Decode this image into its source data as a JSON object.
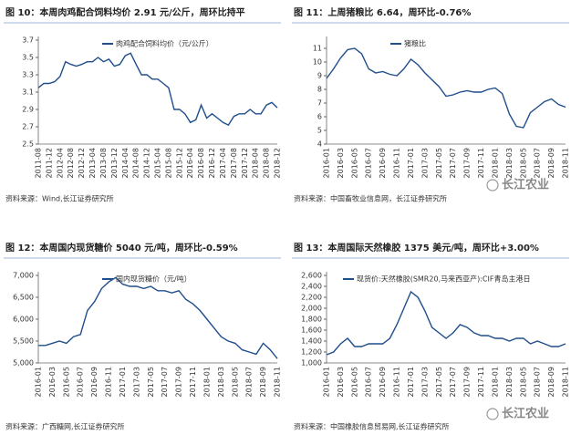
{
  "chart_data": [
    {
      "type": "line",
      "title": "图 10：本周肉鸡配合饲料均价 2.91 元/公斤，周环比持平",
      "source": "资料来源：Wind,长江证券研究所",
      "categories": [
        "2011-08",
        null,
        "2011-12",
        null,
        "2012-04",
        null,
        "2012-08",
        null,
        "2012-12",
        null,
        "2013-04",
        null,
        "2013-08",
        null,
        "2013-12",
        null,
        "2014-04",
        null,
        "2014-08",
        null,
        "2014-12",
        null,
        "2015-04",
        null,
        "2015-08",
        null,
        "2015-12",
        null,
        "2016-04",
        null,
        "2016-08",
        null,
        "2016-12",
        null,
        "2017-04",
        null,
        "2017-08",
        null,
        "2017-12",
        null,
        "2018-04",
        null,
        "2018-08",
        null,
        "2018-12"
      ],
      "series": [
        {
          "name": "肉鸡配合饲料均价（元/公斤）",
          "color": "#1f4e8c",
          "values": [
            3.15,
            3.2,
            3.2,
            3.22,
            3.28,
            3.45,
            3.42,
            3.4,
            3.42,
            3.45,
            3.45,
            3.5,
            3.45,
            3.48,
            3.4,
            3.42,
            3.52,
            3.55,
            3.42,
            3.3,
            3.3,
            3.25,
            3.25,
            3.2,
            3.15,
            2.9,
            2.9,
            2.85,
            2.75,
            2.78,
            2.95,
            2.8,
            2.85,
            2.8,
            2.75,
            2.72,
            2.82,
            2.85,
            2.85,
            2.9,
            2.85,
            2.85,
            2.95,
            2.98,
            2.92
          ]
        }
      ],
      "ylim": [
        2.5,
        3.7
      ],
      "yticks": [
        2.5,
        2.7,
        2.9,
        3.1,
        3.3,
        3.5,
        3.7
      ],
      "grid": false
    },
    {
      "type": "line",
      "title": "图 11：上周猪粮比 6.64，周环比-0.76%",
      "source": "资料来源：中国畜牧业信息网，长江证券研究所",
      "watermark": "长江农业",
      "categories": [
        "2016-01",
        null,
        "2016-03",
        null,
        "2016-05",
        null,
        "2016-07",
        null,
        "2016-09",
        null,
        "2016-11",
        null,
        "2017-01",
        null,
        "2017-03",
        null,
        "2017-05",
        null,
        "2017-07",
        null,
        "2017-09",
        null,
        "2017-11",
        null,
        "2018-01",
        null,
        "2018-03",
        null,
        "2018-05",
        null,
        "2018-07",
        null,
        "2018-09",
        null,
        "2018-11"
      ],
      "series": [
        {
          "name": "猪粮比",
          "color": "#1f4e8c",
          "values": [
            8.8,
            9.5,
            10.3,
            10.9,
            11.0,
            10.6,
            9.5,
            9.2,
            9.3,
            9.1,
            9.0,
            9.5,
            10.2,
            9.8,
            9.2,
            8.7,
            8.2,
            7.5,
            7.6,
            7.8,
            7.9,
            7.8,
            7.8,
            8.0,
            8.1,
            7.7,
            6.2,
            5.3,
            5.2,
            6.3,
            6.7,
            7.1,
            7.3,
            6.9,
            6.7
          ]
        }
      ],
      "ylim": [
        4,
        11.6
      ],
      "yticks": [
        4,
        5,
        6,
        7,
        8,
        9,
        10,
        11
      ],
      "grid": false
    },
    {
      "type": "line",
      "title": "图 12：本周国内现货糖价 5040 元/吨，周环比-0.59%",
      "source": "资料来源：广西糖网,长江证券研究所",
      "categories": [
        "2016-01",
        null,
        "2016-03",
        null,
        "2016-05",
        null,
        "2016-07",
        null,
        "2016-09",
        null,
        "2016-11",
        null,
        "2017-01",
        null,
        "2017-03",
        null,
        "2017-05",
        null,
        "2017-07",
        null,
        "2017-09",
        null,
        "2017-11",
        null,
        "2018-01",
        null,
        "2018-03",
        null,
        "2018-05",
        null,
        "2018-07",
        null,
        "2018-09",
        null,
        "2018-11"
      ],
      "series": [
        {
          "name": "国内现货糖价（元/吨）",
          "color": "#1f4e8c",
          "values": [
            5400,
            5400,
            5450,
            5500,
            5450,
            5600,
            5650,
            6200,
            6400,
            6700,
            6850,
            6950,
            6800,
            6750,
            6750,
            6700,
            6750,
            6650,
            6650,
            6600,
            6650,
            6450,
            6350,
            6200,
            6000,
            5800,
            5600,
            5500,
            5450,
            5300,
            5250,
            5200,
            5450,
            5300,
            5100
          ]
        }
      ],
      "ylim": [
        5000,
        7000
      ],
      "yticks": [
        {
          "value": 5000,
          "label": "5,000"
        },
        {
          "value": 5500,
          "label": "5,500"
        },
        {
          "value": 6000,
          "label": "6,000"
        },
        {
          "value": 6500,
          "label": "6,500"
        },
        {
          "value": 7000,
          "label": "7,000"
        }
      ],
      "grid": false
    },
    {
      "type": "line",
      "title": "图 13：本周国际天然橡胶 1375 美元/吨，周环比+3.00%",
      "source": "资料来源：中国橡胶信息贸易网,长江证券研究所",
      "watermark": "长江农业",
      "categories": [
        "2016-01",
        null,
        "2016-03",
        null,
        "2016-05",
        null,
        "2016-07",
        null,
        "2016-09",
        null,
        "2016-11",
        null,
        "2017-01",
        null,
        "2017-03",
        null,
        "2017-05",
        null,
        "2017-07",
        null,
        "2017-09",
        null,
        "2017-11",
        null,
        "2018-01",
        null,
        "2018-03",
        null,
        "2018-05",
        null,
        "2018-07",
        null,
        "2018-09",
        null,
        "2018-11"
      ],
      "series": [
        {
          "name": "现货价:天然橡胶(SMR20,马来西亚产):CIF青岛主港日",
          "color": "#1f4e8c",
          "values": [
            1150,
            1200,
            1350,
            1450,
            1300,
            1300,
            1350,
            1350,
            1350,
            1450,
            1700,
            2000,
            2300,
            2200,
            1950,
            1650,
            1550,
            1450,
            1550,
            1700,
            1650,
            1550,
            1500,
            1500,
            1450,
            1450,
            1400,
            1450,
            1450,
            1350,
            1400,
            1350,
            1300,
            1300,
            1350
          ]
        }
      ],
      "ylim": [
        1000,
        2600
      ],
      "yticks": [
        {
          "value": 1000,
          "label": "1,000"
        },
        {
          "value": 1200,
          "label": "1,200"
        },
        {
          "value": 1400,
          "label": "1,400"
        },
        {
          "value": 1600,
          "label": "1,600"
        },
        {
          "value": 1800,
          "label": "1,800"
        },
        {
          "value": 2000,
          "label": "2,000"
        },
        {
          "value": 2200,
          "label": "2,200"
        },
        {
          "value": 2400,
          "label": "2,400"
        },
        {
          "value": 2600,
          "label": "2,600"
        }
      ],
      "grid": false
    }
  ]
}
